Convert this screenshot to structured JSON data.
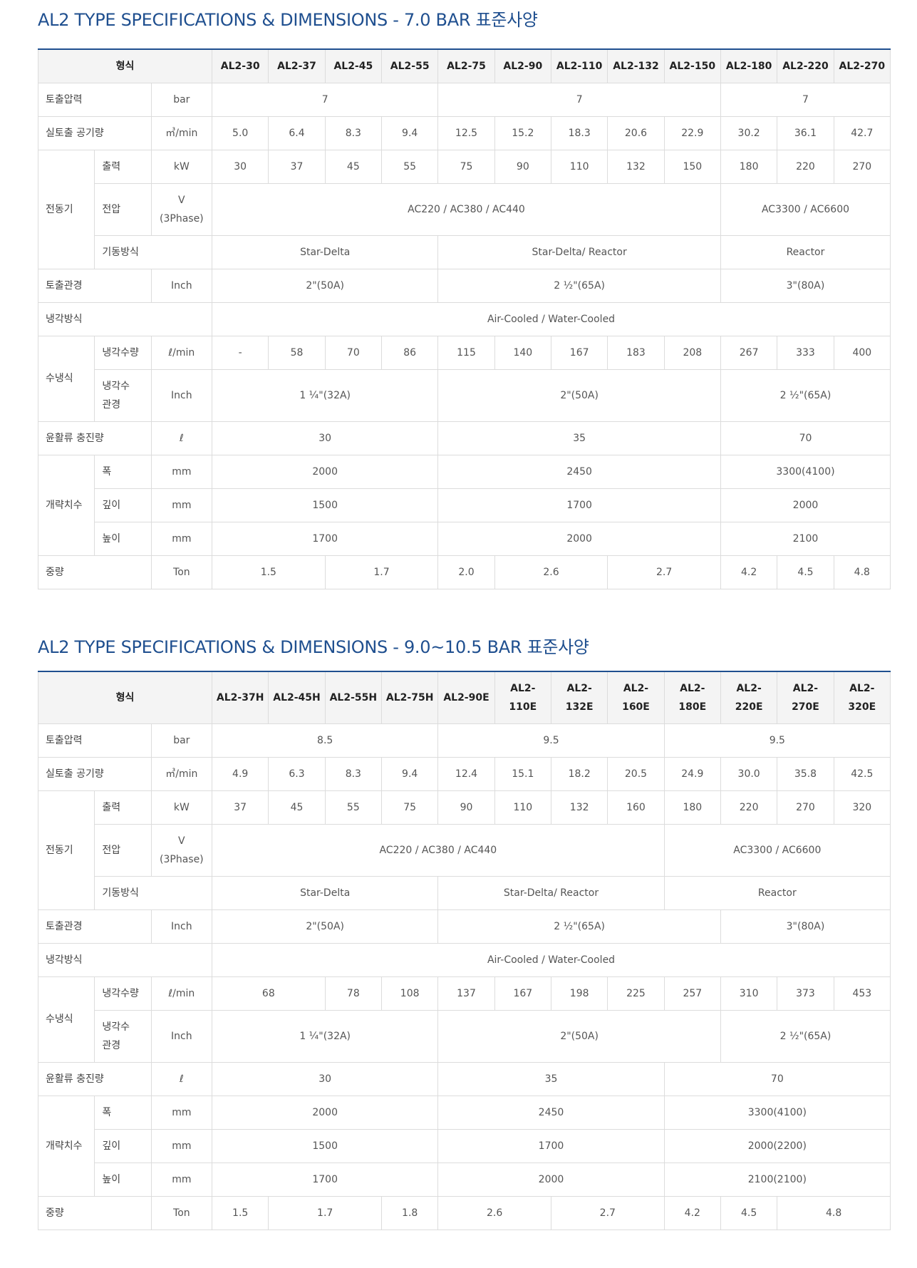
{
  "table1": {
    "title": "AL2 TYPE SPECIFICATIONS & DIMENSIONS - 7.0 BAR 표준사양",
    "header_label": "형식",
    "models": [
      "AL2-30",
      "AL2-37",
      "AL2-45",
      "AL2-55",
      "AL2-75",
      "AL2-90",
      "AL2-110",
      "AL2-132",
      "AL2-150",
      "AL2-180",
      "AL2-220",
      "AL2-270"
    ],
    "discharge_pressure": {
      "label": "토출압력",
      "unit": "bar",
      "values": [
        "7",
        "7",
        "7"
      ]
    },
    "fad": {
      "label": "실토출 공기량",
      "unit": "㎥/min",
      "values": [
        "5.0",
        "6.4",
        "8.3",
        "9.4",
        "12.5",
        "15.2",
        "18.3",
        "20.6",
        "22.9",
        "30.2",
        "36.1",
        "42.7"
      ]
    },
    "motor": {
      "label": "전동기",
      "output": {
        "label": "출력",
        "unit": "kW",
        "values": [
          "30",
          "37",
          "45",
          "55",
          "75",
          "90",
          "110",
          "132",
          "150",
          "180",
          "220",
          "270"
        ]
      },
      "voltage": {
        "label": "전압",
        "unit_line1": "V",
        "unit_line2": "(3Phase)",
        "values": [
          "AC220 / AC380 / AC440",
          "AC3300 / AC6600"
        ]
      },
      "starting": {
        "label": "기동방식",
        "values": [
          "Star-Delta",
          "Star-Delta/ Reactor",
          "Reactor"
        ]
      }
    },
    "discharge_pipe": {
      "label": "토출관경",
      "unit": "Inch",
      "values": [
        "2\"(50A)",
        "2 ½\"(65A)",
        "3\"(80A)"
      ]
    },
    "cooling": {
      "label": "냉각방식",
      "value": "Air-Cooled / Water-Cooled"
    },
    "water_cooled": {
      "label": "수냉식",
      "flow": {
        "label": "냉각수량",
        "unit": "ℓ/min",
        "values": [
          "-",
          "58",
          "70",
          "86",
          "115",
          "140",
          "167",
          "183",
          "208",
          "267",
          "333",
          "400"
        ]
      },
      "pipe": {
        "label_line1": "냉각수",
        "label_line2": "관경",
        "unit": "Inch",
        "values": [
          "1 ¼\"(32A)",
          "2\"(50A)",
          "2 ½\"(65A)"
        ]
      }
    },
    "lubricant": {
      "label": "윤활류 충진량",
      "unit": "ℓ",
      "values": [
        "30",
        "35",
        "70"
      ]
    },
    "dimensions": {
      "label": "개략치수",
      "width": {
        "label": "폭",
        "unit": "mm",
        "values": [
          "2000",
          "2450",
          "3300(4100)"
        ]
      },
      "depth": {
        "label": "깊이",
        "unit": "mm",
        "values": [
          "1500",
          "1700",
          "2000"
        ]
      },
      "height": {
        "label": "높이",
        "unit": "mm",
        "values": [
          "1700",
          "2000",
          "2100"
        ]
      }
    },
    "weight": {
      "label": "중량",
      "unit": "Ton",
      "values": [
        "1.5",
        "1.7",
        "2.0",
        "2.6",
        "2.7",
        "4.2",
        "4.5",
        "4.8"
      ]
    }
  },
  "table2": {
    "title": "AL2 TYPE SPECIFICATIONS & DIMENSIONS - 9.0~10.5 BAR 표준사양",
    "header_label": "형식",
    "models": [
      "AL2-37H",
      "AL2-45H",
      "AL2-55H",
      "AL2-75H",
      "AL2-90E",
      "AL2-110E",
      "AL2-132E",
      "AL2-160E",
      "AL2-180E",
      "AL2-220E",
      "AL2-270E",
      "AL2-320E"
    ],
    "models_split": [
      [
        "AL2-",
        "110E"
      ],
      [
        "AL2-",
        "132E"
      ],
      [
        "AL2-",
        "160E"
      ],
      [
        "AL2-",
        "180E"
      ],
      [
        "AL2-",
        "220E"
      ],
      [
        "AL2-",
        "270E"
      ],
      [
        "AL2-",
        "320E"
      ]
    ],
    "discharge_pressure": {
      "label": "토출압력",
      "unit": "bar",
      "values": [
        "8.5",
        "9.5",
        "9.5"
      ]
    },
    "fad": {
      "label": "실토출 공기량",
      "unit": "㎥/min",
      "values": [
        "4.9",
        "6.3",
        "8.3",
        "9.4",
        "12.4",
        "15.1",
        "18.2",
        "20.5",
        "24.9",
        "30.0",
        "35.8",
        "42.5"
      ]
    },
    "motor": {
      "label": "전동기",
      "output": {
        "label": "출력",
        "unit": "kW",
        "values": [
          "37",
          "45",
          "55",
          "75",
          "90",
          "110",
          "132",
          "160",
          "180",
          "220",
          "270",
          "320"
        ]
      },
      "voltage": {
        "label": "전압",
        "unit_line1": "V",
        "unit_line2": "(3Phase)",
        "values": [
          "AC220 / AC380 / AC440",
          "AC3300 / AC6600"
        ]
      },
      "starting": {
        "label": "기동방식",
        "values": [
          "Star-Delta",
          "Star-Delta/ Reactor",
          "Reactor"
        ]
      }
    },
    "discharge_pipe": {
      "label": "토출관경",
      "unit": "Inch",
      "values": [
        "2\"(50A)",
        "2 ½\"(65A)",
        "3\"(80A)"
      ]
    },
    "cooling": {
      "label": "냉각방식",
      "value": "Air-Cooled / Water-Cooled"
    },
    "water_cooled": {
      "label": "수냉식",
      "flow": {
        "label": "냉각수량",
        "unit": "ℓ/min",
        "values": [
          "68",
          "78",
          "108",
          "137",
          "167",
          "198",
          "225",
          "257",
          "310",
          "373",
          "453"
        ]
      },
      "pipe": {
        "label_line1": "냉각수",
        "label_line2": "관경",
        "unit": "Inch",
        "values": [
          "1 ¼\"(32A)",
          "2\"(50A)",
          "2 ½\"(65A)"
        ]
      }
    },
    "lubricant": {
      "label": "윤활류 충진량",
      "unit": "ℓ",
      "values": [
        "30",
        "35",
        "70"
      ]
    },
    "dimensions": {
      "label": "개략치수",
      "width": {
        "label": "폭",
        "unit": "mm",
        "values": [
          "2000",
          "2450",
          "3300(4100)"
        ]
      },
      "depth": {
        "label": "깊이",
        "unit": "mm",
        "values": [
          "1500",
          "1700",
          "2000(2200)"
        ]
      },
      "height": {
        "label": "높이",
        "unit": "mm",
        "values": [
          "1700",
          "2000",
          "2100(2100)"
        ]
      }
    },
    "weight": {
      "label": "중량",
      "unit": "Ton",
      "values": [
        "1.5",
        "1.7",
        "1.8",
        "2.6",
        "2.7",
        "4.2",
        "4.5",
        "4.8"
      ]
    }
  }
}
